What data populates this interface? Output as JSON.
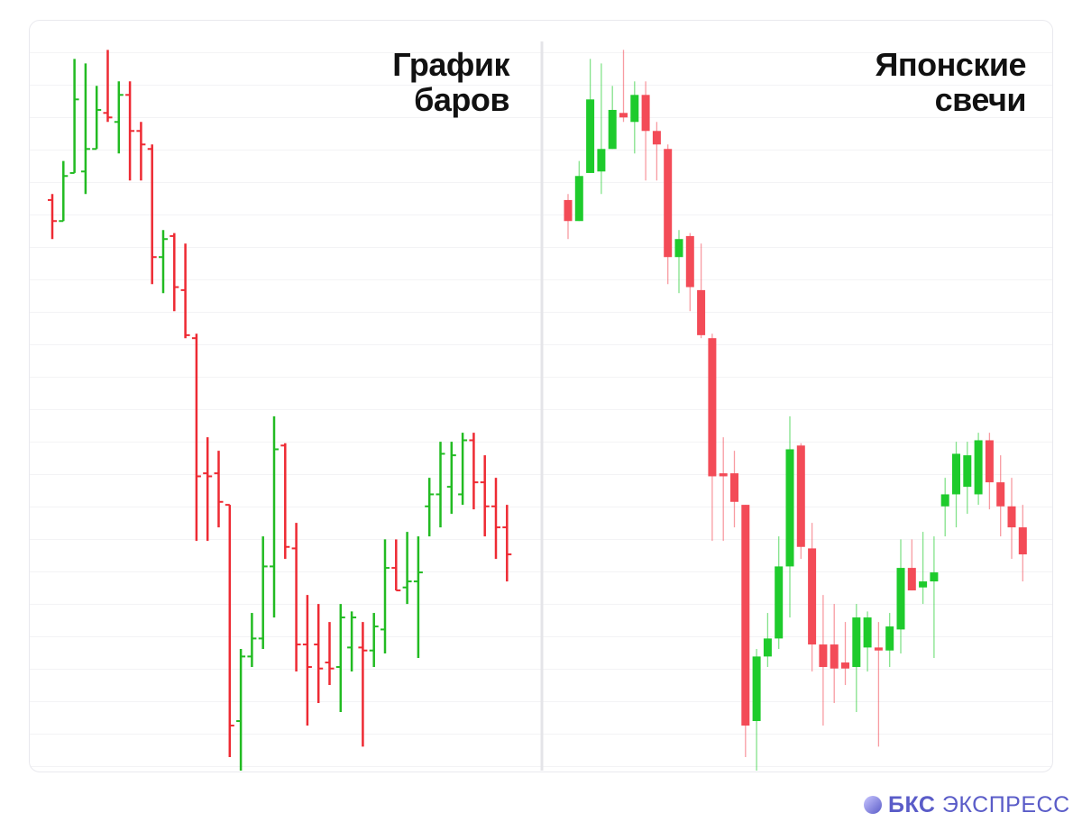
{
  "chart_data": [
    {
      "type": "ohlc",
      "title": "График баров",
      "up_color": "#22bb22",
      "down_color": "#ee2a33",
      "ylim": [
        0,
        100
      ],
      "open": [
        76.0,
        73.2,
        79.6,
        79.8,
        82.8,
        87.6,
        86.4,
        90.0,
        85.2,
        82.8,
        68.4,
        71.2,
        64.0,
        57.6,
        39.6,
        39.6,
        35.4,
        6.6,
        15.2,
        17.6,
        27.2,
        43.3,
        29.6,
        16.8,
        16.8,
        14.4,
        13.8,
        16.4,
        16.4,
        16.0,
        18.8,
        27.0,
        24.4,
        25.2,
        35.2,
        36.8,
        37.8,
        36.8,
        44.0,
        38.4,
        35.2,
        32.4
      ],
      "high": [
        76.8,
        81.2,
        94.8,
        94.2,
        91.2,
        96.0,
        91.8,
        91.8,
        86.4,
        83.4,
        72.0,
        71.6,
        70.2,
        58.2,
        44.4,
        42.6,
        35.4,
        16.2,
        21.0,
        31.2,
        47.2,
        43.6,
        33.0,
        23.4,
        22.2,
        19.8,
        22.2,
        21.2,
        19.8,
        21.0,
        30.8,
        30.8,
        31.8,
        31.2,
        39.0,
        43.8,
        43.8,
        45.0,
        45.0,
        42.0,
        39.0,
        35.4
      ],
      "low": [
        70.8,
        73.2,
        79.6,
        76.8,
        82.8,
        86.4,
        82.2,
        78.6,
        78.6,
        64.8,
        63.6,
        61.2,
        57.6,
        30.6,
        30.6,
        32.4,
        1.8,
        0,
        13.8,
        16.2,
        20.4,
        28.2,
        13.2,
        6.0,
        9.0,
        11.4,
        7.8,
        13.2,
        3.2,
        13.8,
        15.6,
        24.0,
        22.2,
        15.0,
        31.2,
        32.4,
        34.2,
        35.4,
        34.8,
        31.2,
        28.2,
        25.2
      ],
      "close": [
        73.2,
        79.2,
        89.4,
        82.8,
        88.0,
        87.0,
        90.0,
        85.2,
        83.4,
        68.4,
        70.8,
        64.4,
        58.0,
        39.2,
        39.2,
        35.8,
        6.0,
        15.2,
        17.6,
        27.2,
        42.8,
        29.8,
        16.8,
        13.8,
        13.6,
        13.6,
        20.4,
        20.4,
        16.0,
        19.2,
        27.0,
        24.0,
        25.2,
        26.4,
        36.8,
        42.2,
        42.0,
        44.0,
        38.4,
        35.2,
        32.4,
        28.8
      ]
    },
    {
      "type": "candlestick",
      "title": "Японские свечи",
      "up_color": "#1ecb2c",
      "down_color": "#f34b57",
      "ylim": [
        0,
        100
      ],
      "open": [
        76.0,
        73.2,
        79.6,
        79.8,
        82.8,
        87.6,
        86.4,
        90.0,
        85.2,
        82.8,
        68.4,
        71.2,
        64.0,
        57.6,
        39.6,
        39.6,
        35.4,
        6.6,
        15.2,
        17.6,
        27.2,
        43.3,
        29.6,
        16.8,
        16.8,
        14.4,
        13.8,
        16.4,
        16.4,
        16.0,
        18.8,
        27.0,
        24.4,
        25.2,
        35.2,
        36.8,
        37.8,
        36.8,
        44.0,
        38.4,
        35.2,
        32.4
      ],
      "high": [
        76.8,
        81.2,
        94.8,
        94.2,
        91.2,
        96.0,
        91.8,
        91.8,
        86.4,
        83.4,
        72.0,
        71.6,
        70.2,
        58.2,
        44.4,
        42.6,
        35.4,
        16.2,
        21.0,
        31.2,
        47.2,
        43.6,
        33.0,
        23.4,
        22.2,
        19.8,
        22.2,
        21.2,
        19.8,
        21.0,
        30.8,
        30.8,
        31.8,
        31.2,
        39.0,
        43.8,
        43.8,
        45.0,
        45.0,
        42.0,
        39.0,
        35.4
      ],
      "low": [
        70.8,
        73.2,
        79.6,
        76.8,
        82.8,
        86.4,
        82.2,
        78.6,
        78.6,
        64.8,
        63.6,
        61.2,
        57.6,
        30.6,
        30.6,
        32.4,
        1.8,
        0,
        13.8,
        16.2,
        20.4,
        28.2,
        13.2,
        6.0,
        9.0,
        11.4,
        7.8,
        13.2,
        3.2,
        13.8,
        15.6,
        24.0,
        22.2,
        15.0,
        31.2,
        32.4,
        34.2,
        35.4,
        34.8,
        31.2,
        28.2,
        25.2
      ],
      "close": [
        73.2,
        79.2,
        89.4,
        82.8,
        88.0,
        87.0,
        90.0,
        85.2,
        83.4,
        68.4,
        70.8,
        64.4,
        58.0,
        39.2,
        39.2,
        35.8,
        6.0,
        15.2,
        17.6,
        27.2,
        42.8,
        29.8,
        16.8,
        13.8,
        13.6,
        13.6,
        20.4,
        20.4,
        16.0,
        19.2,
        27.0,
        24.0,
        25.2,
        26.4,
        36.8,
        42.2,
        42.0,
        44.0,
        38.4,
        35.2,
        32.4,
        28.8
      ]
    }
  ],
  "footer": {
    "brand": "БКС",
    "product": "ЭКСПРЕСС"
  }
}
